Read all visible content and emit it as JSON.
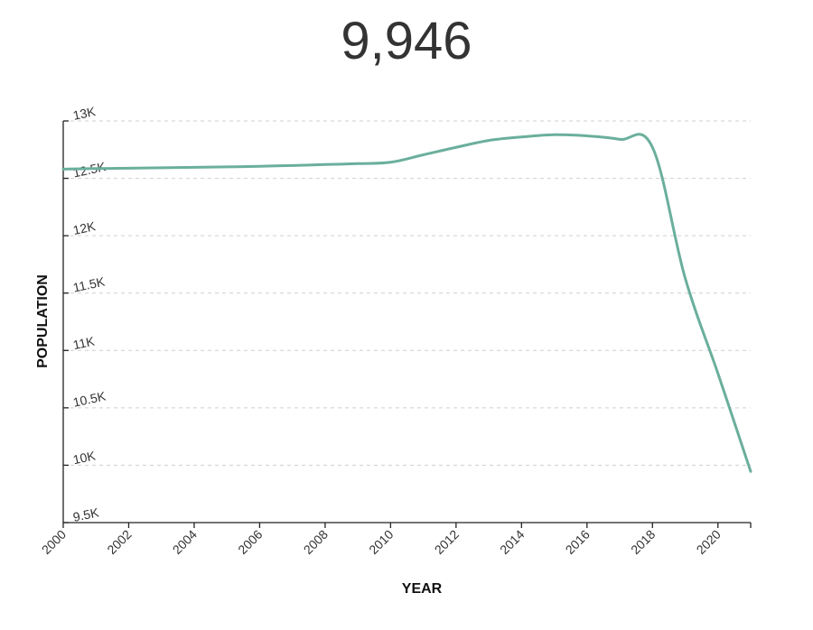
{
  "headline": {
    "value_label": "9,946"
  },
  "chart_data": {
    "type": "line",
    "title": "9,946",
    "xlabel": "YEAR",
    "ylabel": "POPULATION",
    "xlim": [
      2000,
      2021
    ],
    "ylim": [
      9500,
      13000
    ],
    "x_ticks": [
      2000,
      2002,
      2004,
      2006,
      2008,
      2010,
      2012,
      2014,
      2016,
      2018,
      2020
    ],
    "x_tick_labels": [
      "2000",
      "2002",
      "2004",
      "2006",
      "2008",
      "2010",
      "2012",
      "2014",
      "2016",
      "2018",
      "2020"
    ],
    "y_ticks": [
      9500,
      10000,
      10500,
      11000,
      11500,
      12000,
      12500,
      13000
    ],
    "y_tick_labels": [
      "9.5K",
      "10K",
      "10.5K",
      "11K",
      "11.5K",
      "12K",
      "12.5K",
      "13K"
    ],
    "grid": true,
    "line_color": "#6aaf9c",
    "series": [
      {
        "x": [
          2000,
          2001,
          2002,
          2003,
          2004,
          2005,
          2006,
          2007,
          2008,
          2009,
          2010,
          2011,
          2012,
          2013,
          2014,
          2015,
          2016,
          2017,
          2018,
          2019,
          2020,
          2021
        ],
        "y": [
          12580,
          12585,
          12588,
          12592,
          12596,
          12600,
          12605,
          12612,
          12620,
          12628,
          12640,
          12705,
          12770,
          12830,
          12860,
          12880,
          12870,
          12840,
          12770,
          11630,
          10800,
          9946
        ]
      }
    ]
  }
}
